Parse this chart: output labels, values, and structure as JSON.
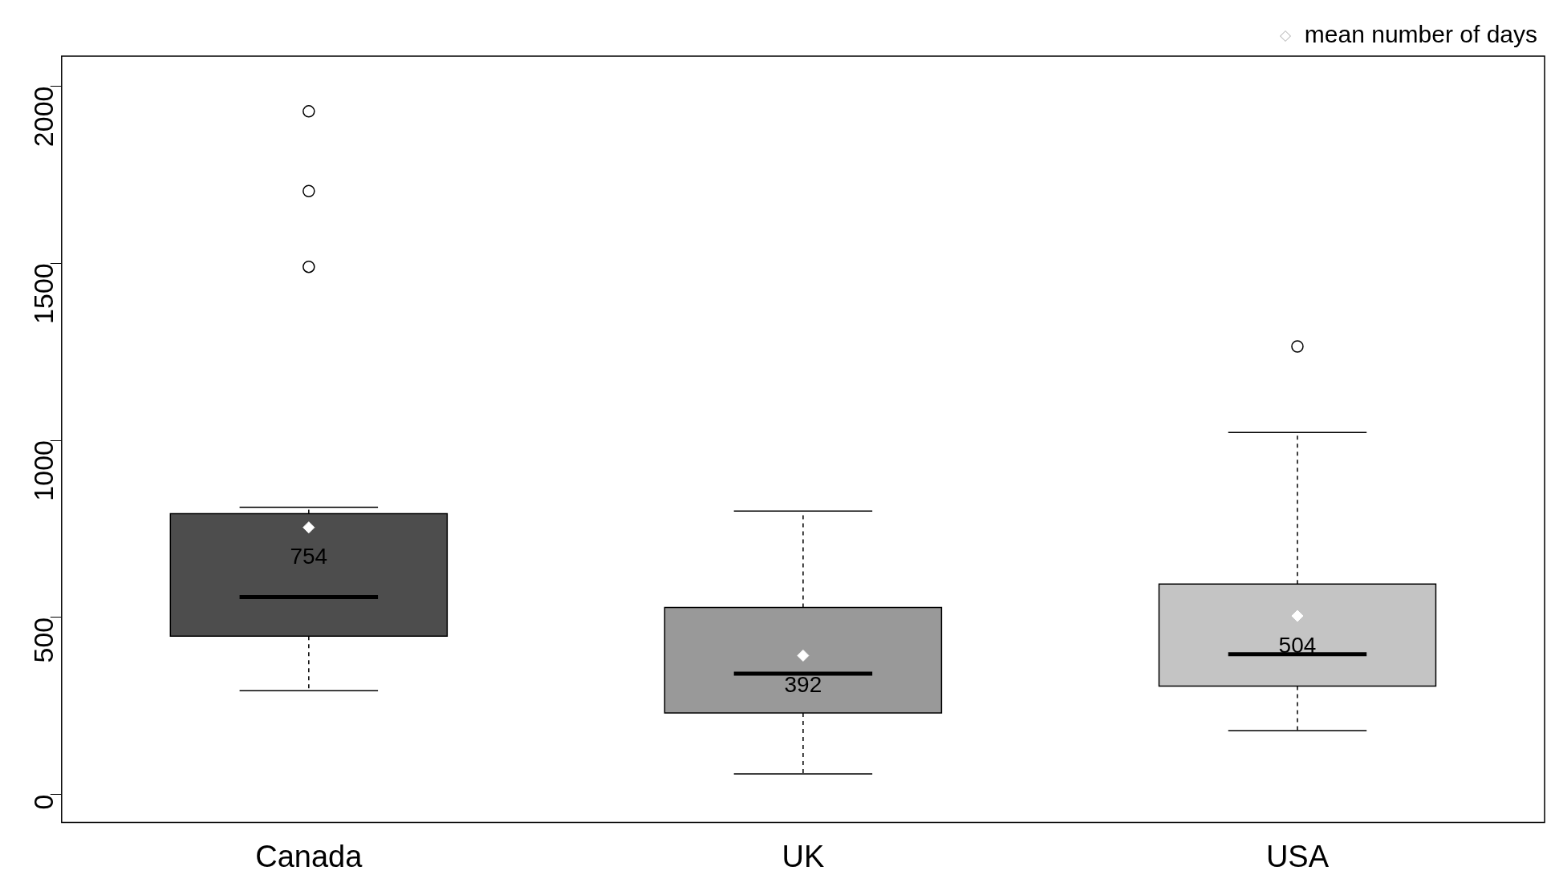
{
  "chart_data": {
    "type": "box",
    "categories": [
      "Canada",
      "UK",
      "USA"
    ],
    "colors": [
      "#4d4d4d",
      "#999999",
      "#c4c4c4"
    ],
    "boxes": [
      {
        "low": 293,
        "q1": 447,
        "median": 557,
        "q3": 793,
        "high": 811,
        "outliers": [
          1490,
          1704,
          1929
        ]
      },
      {
        "low": 58,
        "q1": 230,
        "median": 341,
        "q3": 528,
        "high": 800
      },
      {
        "low": 180,
        "q1": 306,
        "median": 396,
        "q3": 594,
        "high": 1022,
        "outliers": [
          1265
        ]
      }
    ],
    "series": [
      {
        "name": "mean number of days",
        "type": "scatter",
        "color": "#ffffff",
        "marker": "diamond",
        "x": [
          "Canada",
          "UK",
          "USA"
        ],
        "values": [
          754,
          392,
          504
        ],
        "value_labels": [
          "754",
          "392",
          "504"
        ]
      }
    ],
    "ylim": [
      -79,
      2085
    ],
    "yticks": [
      0,
      500,
      1000,
      1500,
      2000
    ],
    "grid": false,
    "legend": "top right"
  }
}
